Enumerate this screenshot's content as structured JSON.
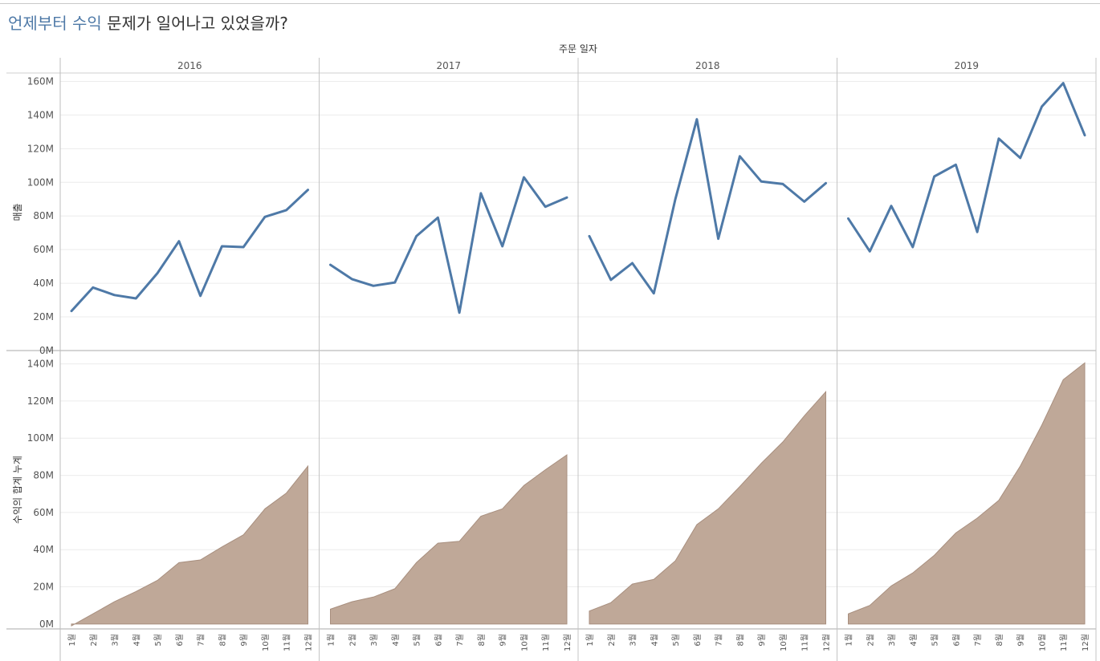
{
  "title": {
    "highlight": "언제부터 수익",
    "rest": " 문제가 일어나고 있었을까?",
    "highlight_color": "#4e79a7"
  },
  "chart_data": {
    "type": "line",
    "column_header": "주문 일자",
    "years": [
      "2016",
      "2017",
      "2018",
      "2019"
    ],
    "month_labels": [
      "1월",
      "2월",
      "3월",
      "4월",
      "5월",
      "6월",
      "7월",
      "8월",
      "9월",
      "10월",
      "11월",
      "12월"
    ],
    "panels": [
      {
        "type": "line",
        "ylabel": "매출",
        "ylim": [
          0,
          165000000
        ],
        "ticks": [
          0,
          20000000,
          40000000,
          60000000,
          80000000,
          100000000,
          120000000,
          140000000,
          160000000
        ],
        "tick_labels": [
          "0M",
          "20M",
          "40M",
          "60M",
          "80M",
          "100M",
          "120M",
          "140M",
          "160M"
        ],
        "color": "#4e79a7",
        "values": {
          "2016": [
            23500000,
            37500000,
            33000000,
            31000000,
            46000000,
            65000000,
            32500000,
            62000000,
            61500000,
            79500000,
            83500000,
            95500000
          ],
          "2017": [
            51000000,
            42500000,
            38500000,
            40500000,
            68000000,
            79000000,
            22500000,
            93500000,
            62000000,
            103000000,
            85500000,
            91000000
          ],
          "2018": [
            68000000,
            42000000,
            52000000,
            34000000,
            90000000,
            137500000,
            66500000,
            115500000,
            100500000,
            99000000,
            88500000,
            99500000
          ],
          "2019": [
            78500000,
            59000000,
            86000000,
            61500000,
            103500000,
            110500000,
            70500000,
            126000000,
            114500000,
            145000000,
            159000000,
            128000000
          ]
        }
      },
      {
        "type": "area",
        "ylabel": "수익의 합계 누계",
        "ylim": [
          -3500000,
          145000000
        ],
        "ticks": [
          0,
          20000000,
          40000000,
          60000000,
          80000000,
          100000000,
          120000000,
          140000000
        ],
        "tick_labels": [
          "0M",
          "20M",
          "40M",
          "60M",
          "80M",
          "100M",
          "120M",
          "140M"
        ],
        "color": "#bfa898",
        "values": {
          "2016": [
            -1000000,
            5500000,
            12000000,
            17500000,
            23500000,
            33000000,
            34500000,
            41500000,
            48000000,
            62000000,
            70500000,
            85000000
          ],
          "2017": [
            8000000,
            12000000,
            14500000,
            19000000,
            33000000,
            43500000,
            44500000,
            58000000,
            62000000,
            74500000,
            83000000,
            91000000
          ],
          "2018": [
            7000000,
            11500000,
            21500000,
            24000000,
            34000000,
            53500000,
            62000000,
            74000000,
            86500000,
            98000000,
            112000000,
            125000000
          ],
          "2019": [
            5500000,
            10000000,
            20500000,
            27500000,
            37000000,
            49000000,
            57000000,
            66500000,
            85000000,
            107000000,
            131500000,
            140500000
          ]
        }
      }
    ],
    "grid": true,
    "legend": "none"
  }
}
